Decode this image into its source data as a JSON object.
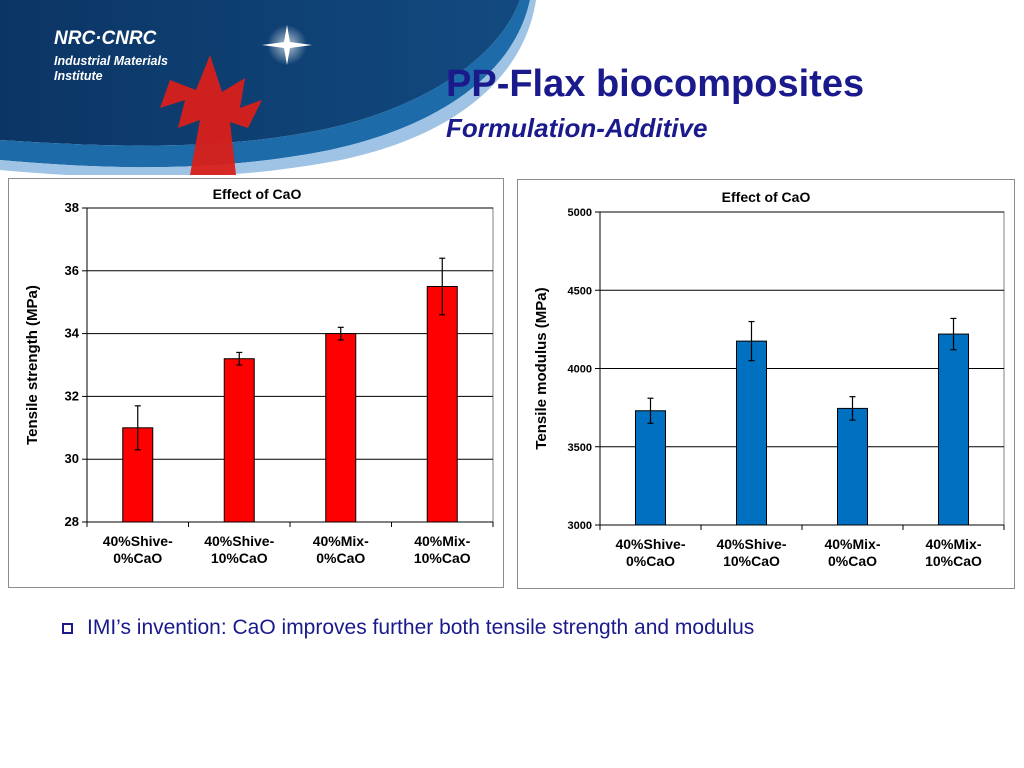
{
  "logo": {
    "org": "NRC·CNRC",
    "institute": "Industrial Materials Institute"
  },
  "slide": {
    "title": "PP-Flax biocomposites",
    "subtitle": "Formulation-Additive",
    "bullet": "IMI’s invention: CaO improves further both tensile strength and modulus"
  },
  "colors": {
    "title_text": "#1a1a8c",
    "header_dark_blue": "#0b3565",
    "header_band_blue": "#1d6ba8",
    "leaf_red": "#d9201a",
    "strength_bars": "#ff0000",
    "modulus_bars": "#0070c0"
  },
  "chart_data": [
    {
      "type": "bar",
      "title": "Effect of CaO",
      "ylabel": "Tensile strength (MPa)",
      "xlabel": "",
      "categories": [
        [
          "40%Shive-",
          "0%CaO"
        ],
        [
          "40%Shive-",
          "10%CaO"
        ],
        [
          "40%Mix-",
          "0%CaO"
        ],
        [
          "40%Mix-",
          "10%CaO"
        ]
      ],
      "values": [
        31.0,
        33.2,
        34.0,
        35.5
      ],
      "errors": [
        0.7,
        0.2,
        0.2,
        0.9
      ],
      "ylim": [
        28,
        38
      ],
      "yticks": [
        "28",
        "30",
        "32",
        "34",
        "36",
        "38"
      ],
      "grid": true,
      "legend": "none"
    },
    {
      "type": "bar",
      "title": "Effect of CaO",
      "ylabel": "Tensile modulus (MPa)",
      "xlabel": "",
      "categories": [
        [
          "40%Shive-",
          "0%CaO"
        ],
        [
          "40%Shive-",
          "10%CaO"
        ],
        [
          "40%Mix-",
          "0%CaO"
        ],
        [
          "40%Mix-",
          "10%CaO"
        ]
      ],
      "values": [
        3730,
        4175,
        3745,
        4220
      ],
      "errors": [
        80,
        125,
        75,
        100
      ],
      "ylim": [
        3000,
        5000
      ],
      "yticks": [
        "3000",
        "3500",
        "4000",
        "4500",
        "5000"
      ],
      "grid": true,
      "legend": "none"
    }
  ]
}
